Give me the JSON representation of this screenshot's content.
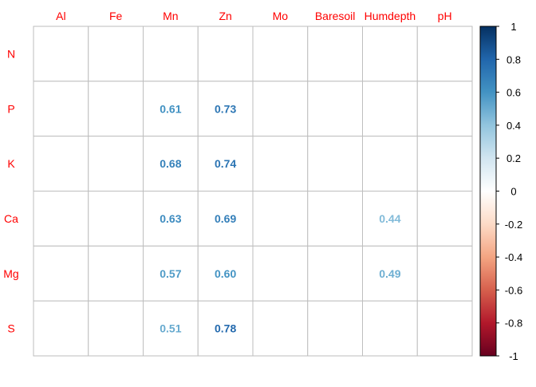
{
  "chart_data": {
    "type": "heatmap",
    "x_labels": [
      "Al",
      "Fe",
      "Mn",
      "Zn",
      "Mo",
      "Baresoil",
      "Humdepth",
      "pH"
    ],
    "y_labels": [
      "N",
      "P",
      "K",
      "Ca",
      "Mg",
      "S"
    ],
    "values": [
      [
        null,
        null,
        null,
        null,
        null,
        null,
        null,
        null
      ],
      [
        null,
        null,
        0.61,
        0.73,
        null,
        null,
        null,
        null
      ],
      [
        null,
        null,
        0.68,
        0.74,
        null,
        null,
        null,
        null
      ],
      [
        null,
        null,
        0.63,
        0.69,
        null,
        null,
        0.44,
        null
      ],
      [
        null,
        null,
        0.57,
        0.6,
        null,
        null,
        0.49,
        null
      ],
      [
        null,
        null,
        0.51,
        0.78,
        null,
        null,
        null,
        null
      ]
    ],
    "colorbar": {
      "range": [
        -1,
        1
      ],
      "ticks": [
        "1",
        "0.8",
        "0.6",
        "0.4",
        "0.2",
        "0",
        "-0.2",
        "-0.4",
        "-0.6",
        "-0.8",
        "-1"
      ],
      "palette": [
        "#67001F",
        "#B2182B",
        "#D6604D",
        "#F4A582",
        "#FDDBC7",
        "#FFFFFF",
        "#D1E5F0",
        "#92C5DE",
        "#4393C3",
        "#2166AC",
        "#053061"
      ]
    },
    "label_color": "#FF0000",
    "grid": true
  }
}
